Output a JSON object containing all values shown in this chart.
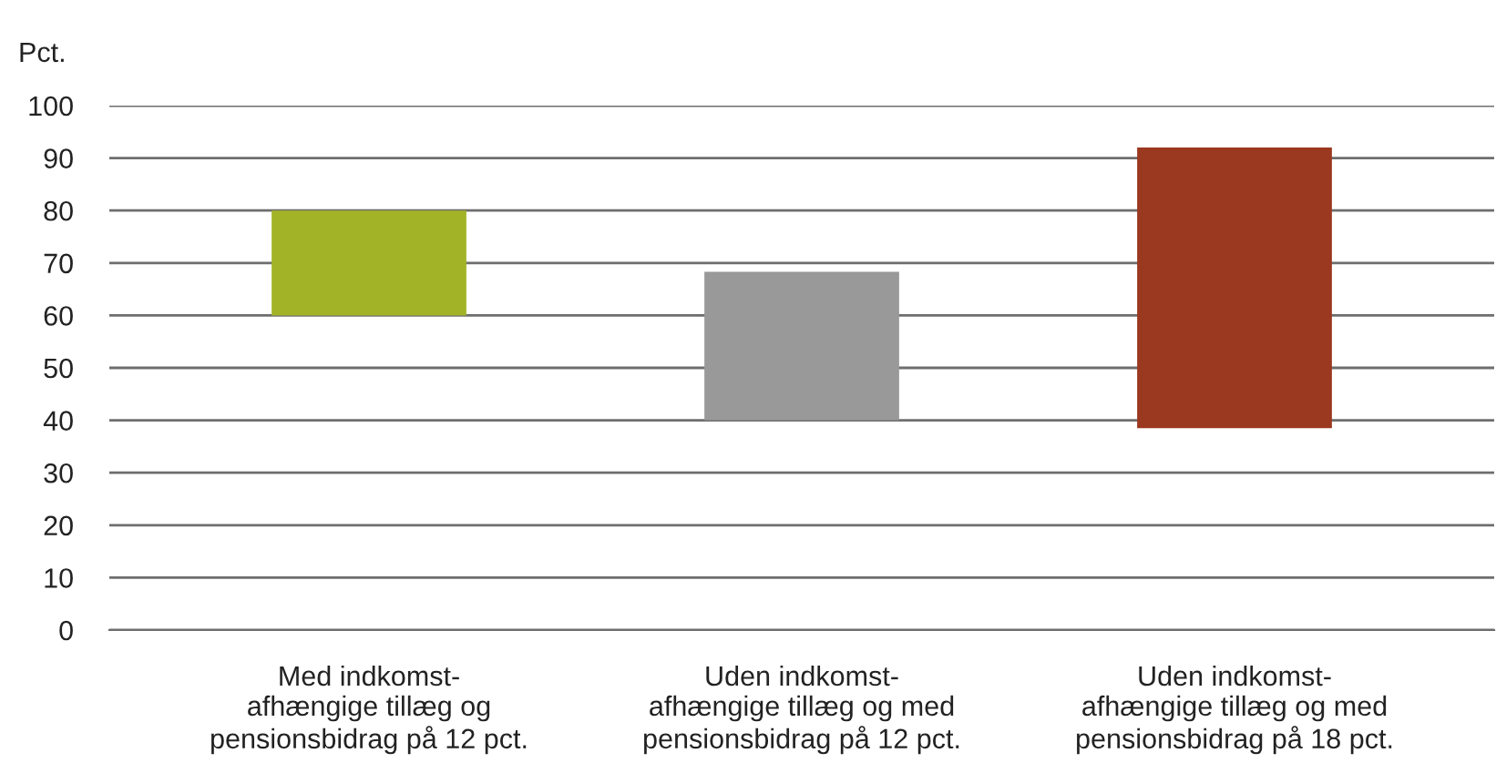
{
  "chart_data": {
    "type": "bar",
    "ylabel": "Pct.",
    "categories": [
      "Med indkomst-\nafhængige tillæg og\npensionsbidrag på 12 pct.",
      "Uden indkomst-\nafhængige tillæg og med\npensionsbidrag på 12 pct.",
      "Uden indkomst-\nafhængige tillæg og med\npensionsbidrag på 18 pct."
    ],
    "values": [
      20,
      28.3,
      53.5
    ],
    "base": [
      60,
      40,
      38.5
    ],
    "colors": [
      "#a2b327",
      "#999999",
      "#9b3820"
    ],
    "ylim": [
      0,
      100
    ],
    "yticks": [
      0,
      10,
      20,
      30,
      40,
      50,
      60,
      70,
      80,
      90,
      100
    ],
    "grid": "y"
  }
}
